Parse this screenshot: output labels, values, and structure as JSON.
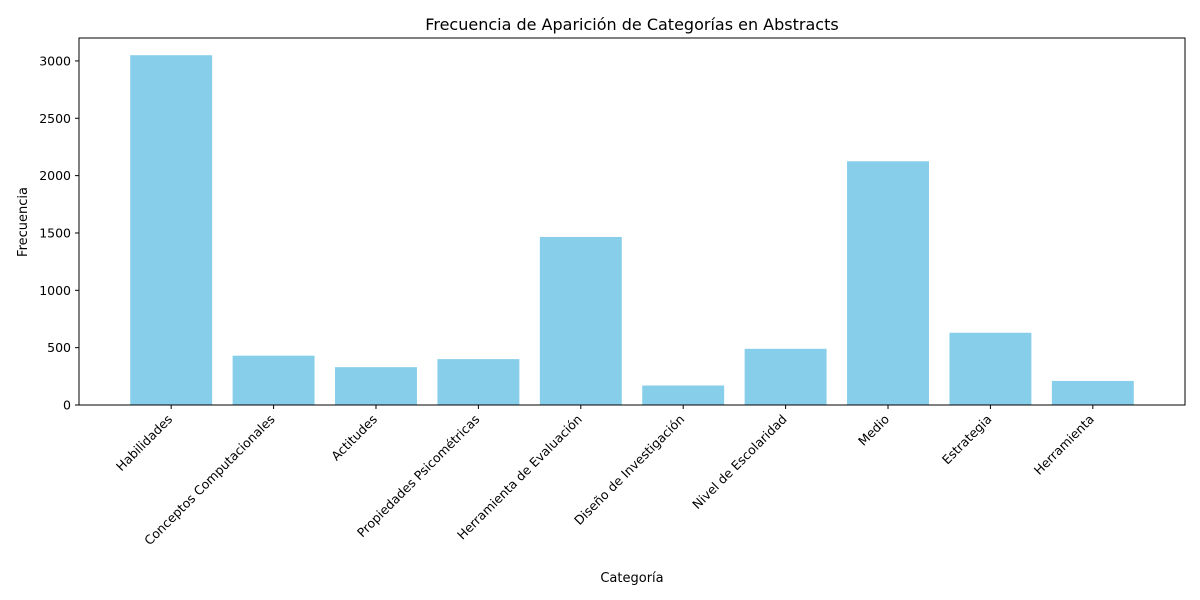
{
  "chart_data": {
    "type": "bar",
    "title": "Frecuencia de Aparición de Categorías en Abstracts",
    "xlabel": "Categoría",
    "ylabel": "Frecuencia",
    "categories": [
      "Habilidades",
      "Conceptos Computacionales",
      "Actitudes",
      "Propiedades Psicométricas",
      "Herramienta de Evaluación",
      "Diseño de Investigación",
      "Nivel de Escolaridad",
      "Medio",
      "Estrategia",
      "Herramienta"
    ],
    "values": [
      3050,
      430,
      330,
      400,
      1465,
      170,
      490,
      2125,
      630,
      210
    ],
    "ylim": [
      0,
      3200
    ],
    "yticks": [
      0,
      500,
      1000,
      1500,
      2000,
      2500,
      3000
    ],
    "bar_color": "#87ceeb",
    "grid": false,
    "legend": "none"
  }
}
